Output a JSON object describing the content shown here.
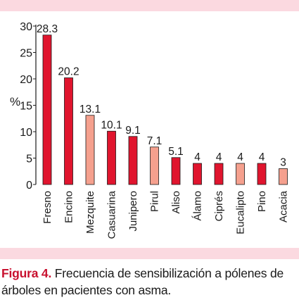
{
  "chart_data": {
    "type": "bar",
    "categories": [
      "Fresno",
      "Encino",
      "Mezquite",
      "Casuarina",
      "Junipero",
      "Pirul",
      "Aliso",
      "Álamo",
      "Ciprés",
      "Eucalipto",
      "Pino",
      "Acacia"
    ],
    "values": [
      28.3,
      20.2,
      13.1,
      10.1,
      9.1,
      7.1,
      5.1,
      4,
      4,
      4,
      4,
      3
    ],
    "data_labels": [
      "28.3",
      "20.2",
      "13.1",
      "10.1",
      "9.1",
      "7.1",
      "5.1",
      "4",
      "4",
      "4",
      "4",
      "3"
    ],
    "ylabel": "%",
    "ylim": [
      0,
      30
    ],
    "yticks": [
      0,
      5,
      10,
      15,
      20,
      25,
      30
    ],
    "grid": false,
    "colors": {
      "default": "#e0152e",
      "highlight": "#f5a08e",
      "bar_outline": "#1a1a1a"
    },
    "bar_colors": [
      "default",
      "default",
      "highlight",
      "default",
      "default",
      "highlight",
      "default",
      "default",
      "default",
      "highlight",
      "default",
      "highlight"
    ]
  },
  "caption": {
    "label": "Figura 4.",
    "text": " Frecuencia de sensibilización a pólenes de árboles en pacientes con asma."
  },
  "colors": {
    "band": "#fbd9e0",
    "caption_label": "#c8102e"
  }
}
